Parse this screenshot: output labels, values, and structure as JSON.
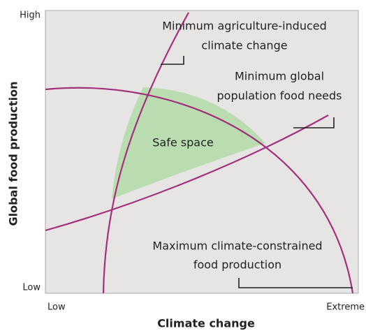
{
  "axes": {
    "y_label": "Global food production",
    "y_high": "High",
    "y_low": "Low",
    "x_label": "Climate change",
    "x_low": "Low",
    "x_high": "Extreme"
  },
  "curves": [
    {
      "label": [
        "Minimum agriculture-induced",
        "climate change"
      ]
    },
    {
      "label": [
        "Minimum global",
        "population food needs"
      ]
    },
    {
      "label": [
        "Maximum climate-constrained",
        "food production"
      ]
    }
  ],
  "region": {
    "label": "Safe space"
  }
}
